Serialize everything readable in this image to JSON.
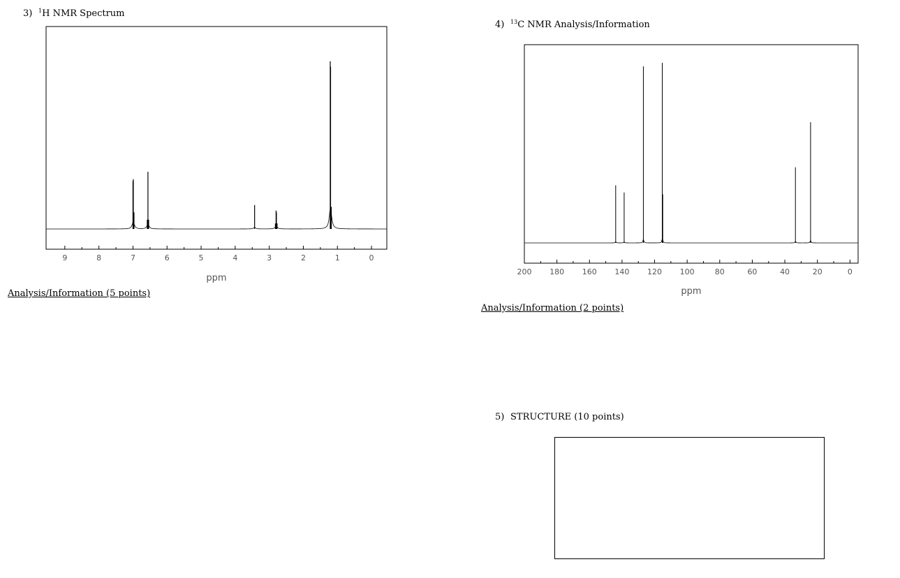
{
  "section3": {
    "number": "3)",
    "sup": "1",
    "title": "H NMR Spectrum",
    "analysis_label": "Analysis/Information (5 points)"
  },
  "section4": {
    "number": "4)",
    "sup": "13",
    "title": "C NMR Analysis/Information",
    "analysis_label": "Analysis/Information (2 points)"
  },
  "section5": {
    "number": "5)",
    "title": "STRUCTURE (10 points)"
  },
  "chart_data": [
    {
      "type": "line",
      "xlabel": "ppm",
      "xlim": [
        9.55,
        -0.45
      ],
      "ticks": [
        9,
        8,
        7,
        6,
        5,
        4,
        3,
        2,
        1,
        0
      ],
      "minor_ticks": [
        8.5,
        7.5,
        6.5,
        5.5,
        4.5,
        3.5,
        2.5,
        1.5,
        0.5
      ],
      "peaks": [
        {
          "x": 7.0,
          "height": 0.26
        },
        {
          "x": 6.99,
          "height": 0.27
        },
        {
          "x": 6.97,
          "height": 0.09
        },
        {
          "x": 6.58,
          "height": 0.05
        },
        {
          "x": 6.56,
          "height": 0.31
        },
        {
          "x": 6.54,
          "height": 0.05
        },
        {
          "x": 3.43,
          "height": 0.13
        },
        {
          "x": 2.82,
          "height": 0.03
        },
        {
          "x": 2.8,
          "height": 0.1
        },
        {
          "x": 2.79,
          "height": 0.09
        },
        {
          "x": 2.77,
          "height": 0.03
        },
        {
          "x": 1.21,
          "height": 0.91
        },
        {
          "x": 1.2,
          "height": 0.88
        },
        {
          "x": 1.18,
          "height": 0.12
        }
      ]
    },
    {
      "type": "line",
      "xlabel": "ppm",
      "xlim": [
        200,
        -5
      ],
      "ticks": [
        200,
        180,
        160,
        140,
        120,
        100,
        80,
        60,
        40,
        20,
        0
      ],
      "minor_ticks": [
        190,
        170,
        150,
        130,
        110,
        90,
        70,
        50,
        30,
        10
      ],
      "peaks": [
        {
          "x": 143.9,
          "height": 0.32
        },
        {
          "x": 138.7,
          "height": 0.28
        },
        {
          "x": 126.9,
          "height": 0.98
        },
        {
          "x": 115.3,
          "height": 1.0
        },
        {
          "x": 115.0,
          "height": 0.27
        },
        {
          "x": 33.5,
          "height": 0.42
        },
        {
          "x": 24.2,
          "height": 0.67
        }
      ]
    }
  ]
}
